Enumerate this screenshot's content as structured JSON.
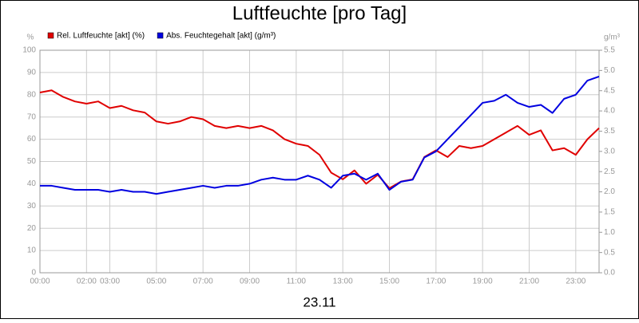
{
  "chart_data": {
    "type": "line",
    "title": "Luftfeuchte [pro Tag]",
    "xlabel": "23.11",
    "ylabel": "%",
    "y2label": "g/m³",
    "x": [
      0,
      0.5,
      1,
      1.5,
      2,
      2.5,
      3,
      3.5,
      4,
      4.5,
      5,
      5.5,
      6,
      6.5,
      7,
      7.5,
      8,
      8.5,
      9,
      9.5,
      10,
      10.5,
      11,
      11.5,
      12,
      12.5,
      13,
      13.5,
      14,
      14.5,
      15,
      15.5,
      16,
      16.5,
      17,
      17.5,
      18,
      18.5,
      19,
      19.5,
      20,
      20.5,
      21,
      21.5,
      22,
      22.5,
      23,
      23.5,
      24
    ],
    "series": [
      {
        "name": "Rel. Luftfeuchte [akt] (%)",
        "color": "#e00000",
        "values": [
          81,
          82,
          79,
          77,
          76,
          77,
          74,
          75,
          73,
          72,
          68,
          67,
          68,
          70,
          69,
          66,
          65,
          66,
          65,
          66,
          64,
          60,
          58,
          57,
          53,
          45,
          42,
          46,
          40,
          44,
          38,
          41,
          42,
          52,
          55,
          52,
          57,
          56,
          57,
          60,
          63,
          66,
          62,
          64,
          55,
          56,
          53,
          60,
          65
        ]
      },
      {
        "name": "Abs. Feuchtegehalt [akt] (g/m³)",
        "color": "#0000e0",
        "axis": "y2",
        "values": [
          2.15,
          2.15,
          2.1,
          2.05,
          2.05,
          2.05,
          2.0,
          2.05,
          2.0,
          2.0,
          1.95,
          2.0,
          2.05,
          2.1,
          2.15,
          2.1,
          2.15,
          2.15,
          2.2,
          2.3,
          2.35,
          2.3,
          2.3,
          2.4,
          2.3,
          2.1,
          2.4,
          2.45,
          2.3,
          2.45,
          2.05,
          2.25,
          2.3,
          2.85,
          3.0,
          3.3,
          3.6,
          3.9,
          4.2,
          4.25,
          4.4,
          4.2,
          4.1,
          4.15,
          3.95,
          4.3,
          4.4,
          4.75,
          4.85
        ]
      }
    ],
    "xlim": [
      0,
      24
    ],
    "xticks": [
      {
        "value": 0,
        "label": "00:00"
      },
      {
        "value": 2,
        "label": "02:00"
      },
      {
        "value": 3,
        "label": "03:00"
      },
      {
        "value": 5,
        "label": "05:00"
      },
      {
        "value": 7,
        "label": "07:00"
      },
      {
        "value": 9,
        "label": "09:00"
      },
      {
        "value": 11,
        "label": "11:00"
      },
      {
        "value": 13,
        "label": "13:00"
      },
      {
        "value": 15,
        "label": "15:00"
      },
      {
        "value": 17,
        "label": "17:00"
      },
      {
        "value": 19,
        "label": "19:00"
      },
      {
        "value": 21,
        "label": "21:00"
      },
      {
        "value": 23,
        "label": "23:00"
      }
    ],
    "ylim": [
      0,
      100
    ],
    "yticks": [
      0,
      10,
      20,
      30,
      40,
      50,
      60,
      70,
      80,
      90,
      100
    ],
    "y2lim": [
      0,
      5.5
    ],
    "y2ticks": [
      {
        "value": 0,
        "label": "0.0"
      },
      0.5,
      {
        "value": 1,
        "label": "1.0"
      },
      1.5,
      {
        "value": 2,
        "label": "2.0"
      },
      2.5,
      {
        "value": 3,
        "label": "3.0"
      },
      3.5,
      {
        "value": 4,
        "label": "4.0"
      },
      4.5,
      {
        "value": 5,
        "label": "5.0"
      },
      5.5
    ],
    "grid": true
  }
}
